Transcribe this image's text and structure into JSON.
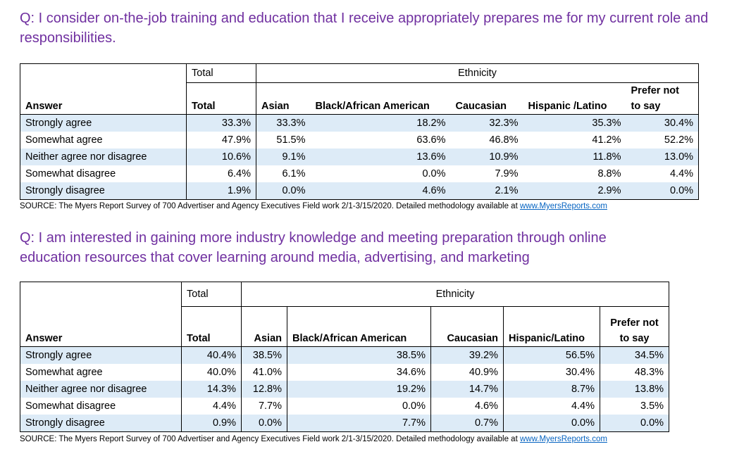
{
  "survey1": {
    "question": "Q: I consider on-the-job training and education that I receive appropriately prepares me for my current role and responsibilities.",
    "group_total": "Total",
    "group_ethnicity": "Ethnicity",
    "columns": [
      "Answer",
      "Total",
      "Asian",
      "Black/African American",
      "Caucasian",
      "Hispanic /Latino",
      "Prefer not",
      "to say"
    ],
    "rows": [
      {
        "answer": "Strongly agree",
        "values": [
          "33.3%",
          "33.3%",
          "18.2%",
          "32.3%",
          "35.3%",
          "30.4%"
        ]
      },
      {
        "answer": "Somewhat agree",
        "values": [
          "47.9%",
          "51.5%",
          "63.6%",
          "46.8%",
          "41.2%",
          "52.2%"
        ]
      },
      {
        "answer": "Neither agree nor disagree",
        "values": [
          "10.6%",
          "9.1%",
          "13.6%",
          "10.9%",
          "11.8%",
          "13.0%"
        ]
      },
      {
        "answer": "Somewhat disagree",
        "values": [
          "6.4%",
          "6.1%",
          "0.0%",
          "7.9%",
          "8.8%",
          "4.4%"
        ]
      },
      {
        "answer": "Strongly disagree",
        "values": [
          "1.9%",
          "0.0%",
          "4.6%",
          "2.1%",
          "2.9%",
          "0.0%"
        ]
      }
    ],
    "source_text": "SOURCE: The Myers Report Survey of 700 Advertiser and Agency Executives Field work 2/1-3/15/2020. Detailed methodology available at ",
    "source_link": "www.MyersReports.com"
  },
  "survey2": {
    "question": "Q: I am interested in gaining more industry knowledge and meeting preparation through online education resources that cover learning around media, advertising, and marketing",
    "group_total": "Total",
    "group_ethnicity": "Ethnicity",
    "columns": [
      "Answer",
      "Total",
      "Asian",
      "Black/African American",
      "Caucasian",
      "Hispanic/Latino",
      "Prefer not",
      "to say"
    ],
    "rows": [
      {
        "answer": "Strongly agree",
        "values": [
          "40.4%",
          "38.5%",
          "38.5%",
          "39.2%",
          "56.5%",
          "34.5%"
        ]
      },
      {
        "answer": "Somewhat agree",
        "values": [
          "40.0%",
          "41.0%",
          "34.6%",
          "40.9%",
          "30.4%",
          "48.3%"
        ]
      },
      {
        "answer": "Neither agree nor disagree",
        "values": [
          "14.3%",
          "12.8%",
          "19.2%",
          "14.7%",
          "8.7%",
          "13.8%"
        ]
      },
      {
        "answer": "Somewhat disagree",
        "values": [
          "4.4%",
          "7.7%",
          "0.0%",
          "4.6%",
          "4.4%",
          "3.5%"
        ]
      },
      {
        "answer": "Strongly disagree",
        "values": [
          "0.9%",
          "0.0%",
          "7.7%",
          "0.7%",
          "0.0%",
          "0.0%"
        ]
      }
    ],
    "source_text": "SOURCE: The Myers Report Survey of 700 Advertiser and Agency Executives Field work 2/1-3/15/2020. Detailed methodology available at ",
    "source_link": "www.MyersReports.com"
  }
}
